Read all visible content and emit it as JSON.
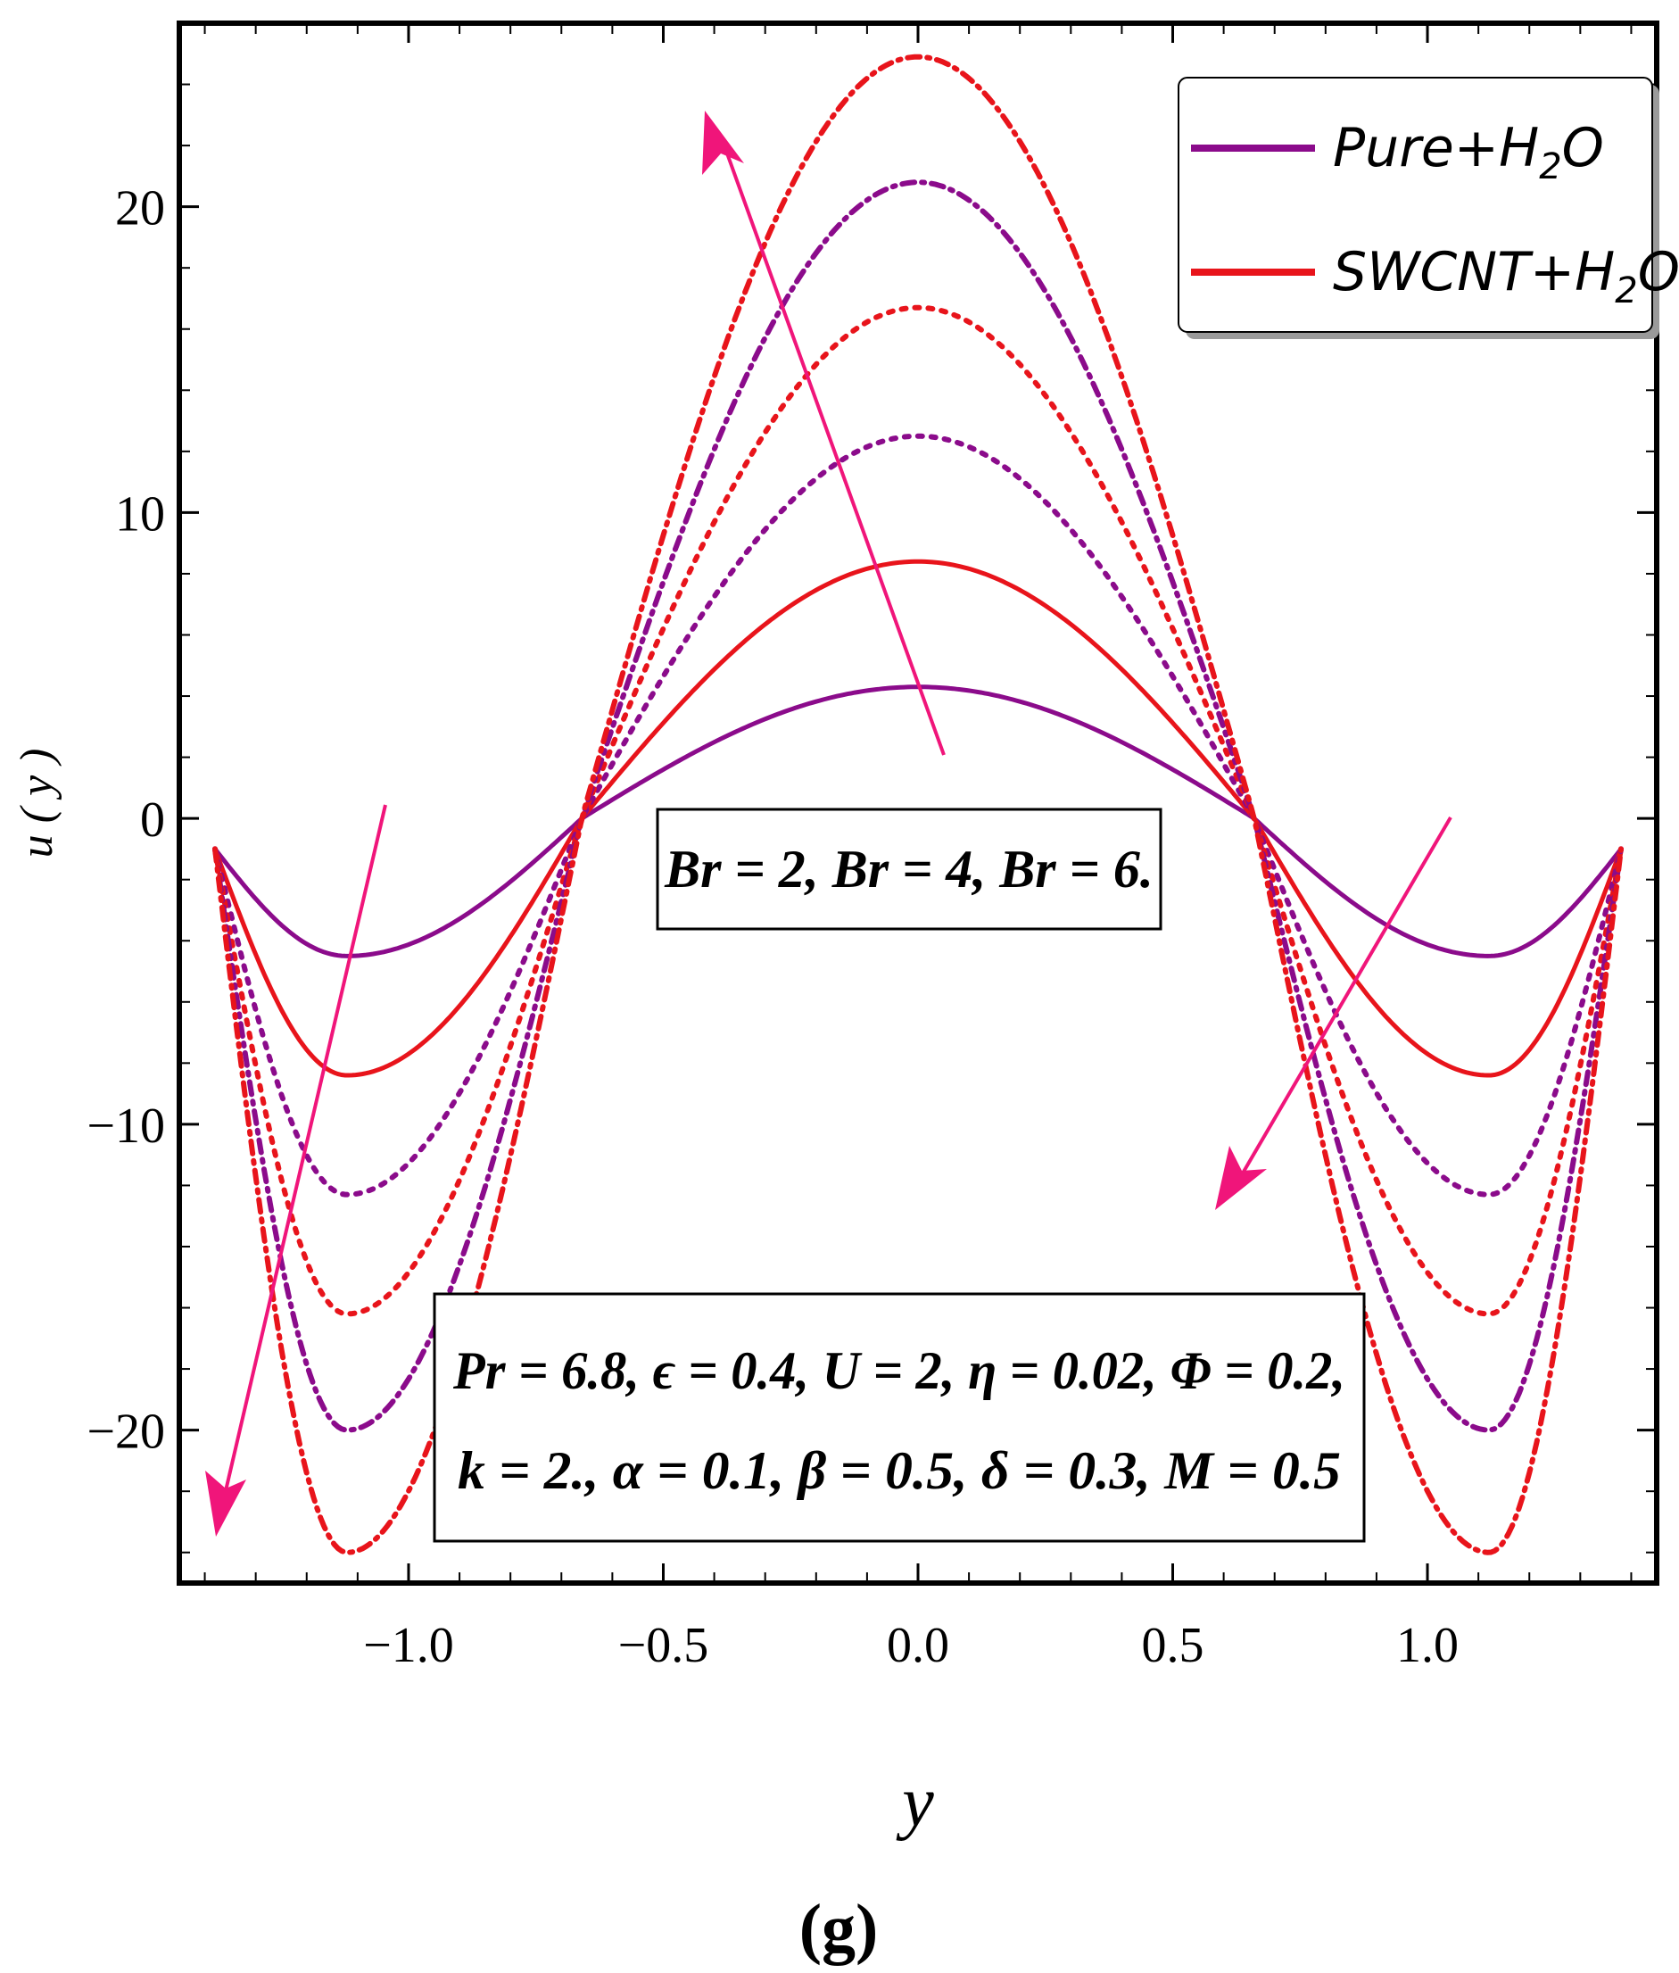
{
  "chart_data": {
    "type": "line",
    "panel_label": "(g)",
    "xlabel": "y",
    "ylabel": "u ( y )",
    "xlim": [
      -1.45,
      1.45
    ],
    "ylim": [
      -25,
      26
    ],
    "xticks": [
      -1.0,
      -0.5,
      0.0,
      0.5,
      1.0
    ],
    "xtick_labels": [
      "−1.0",
      "−0.5",
      "0.0",
      "0.5",
      "1.0"
    ],
    "yticks": [
      -20,
      -10,
      0,
      10,
      20
    ],
    "ytick_labels": [
      "−20",
      "−10",
      "0",
      "10",
      "20"
    ],
    "domain": [
      -1.38,
      1.38
    ],
    "zeros_at": [
      -0.66,
      0.66
    ],
    "legend": {
      "position": "top-right",
      "entries": [
        {
          "label_main": "Pure+H",
          "sub": "2",
          "label_end": "O",
          "color": "#8b0b8b"
        },
        {
          "label_main": "SWCNT+H",
          "sub": "2",
          "label_end": "O",
          "color": "#e8141b"
        }
      ]
    },
    "annotations": {
      "br_box": "Br = 2, Br = 4, Br = 6.",
      "params_line1": "Pr = 6.8, ϵ = 0.4, U = 2, η = 0.02, Φ = 0.2,",
      "params_line2": "k = 2., α = 0.1, β = 0.5, δ = 0.3, M = 0.5"
    },
    "arrow_color": "#f0157a",
    "series": [
      {
        "name": "Pure+H2O, Br = 2",
        "fluid": "Pure+H2O",
        "Br": 2,
        "color": "#8b0b8b",
        "style": "solid",
        "peak": 4.3,
        "trough": -4.5,
        "end": -1.0
      },
      {
        "name": "SWCNT+H2O, Br = 2",
        "fluid": "SWCNT+H2O",
        "Br": 2,
        "color": "#e8141b",
        "style": "solid",
        "peak": 8.4,
        "trough": -8.4,
        "end": -1.0
      },
      {
        "name": "Pure+H2O, Br = 4",
        "fluid": "Pure+H2O",
        "Br": 4,
        "color": "#8b0b8b",
        "style": "dotted",
        "peak": 12.5,
        "trough": -12.3,
        "end": -1.0
      },
      {
        "name": "SWCNT+H2O, Br = 4",
        "fluid": "SWCNT+H2O",
        "Br": 4,
        "color": "#e8141b",
        "style": "dotted",
        "peak": 16.7,
        "trough": -16.2,
        "end": -1.0
      },
      {
        "name": "Pure+H2O, Br = 6",
        "fluid": "Pure+H2O",
        "Br": 6,
        "color": "#8b0b8b",
        "style": "dashdot",
        "peak": 20.8,
        "trough": -20.0,
        "end": -1.0
      },
      {
        "name": "SWCNT+H2O, Br = 6",
        "fluid": "SWCNT+H2O",
        "Br": 6,
        "color": "#e8141b",
        "style": "dashdot",
        "peak": 24.9,
        "trough": -24.0,
        "end": -1.0
      }
    ]
  }
}
